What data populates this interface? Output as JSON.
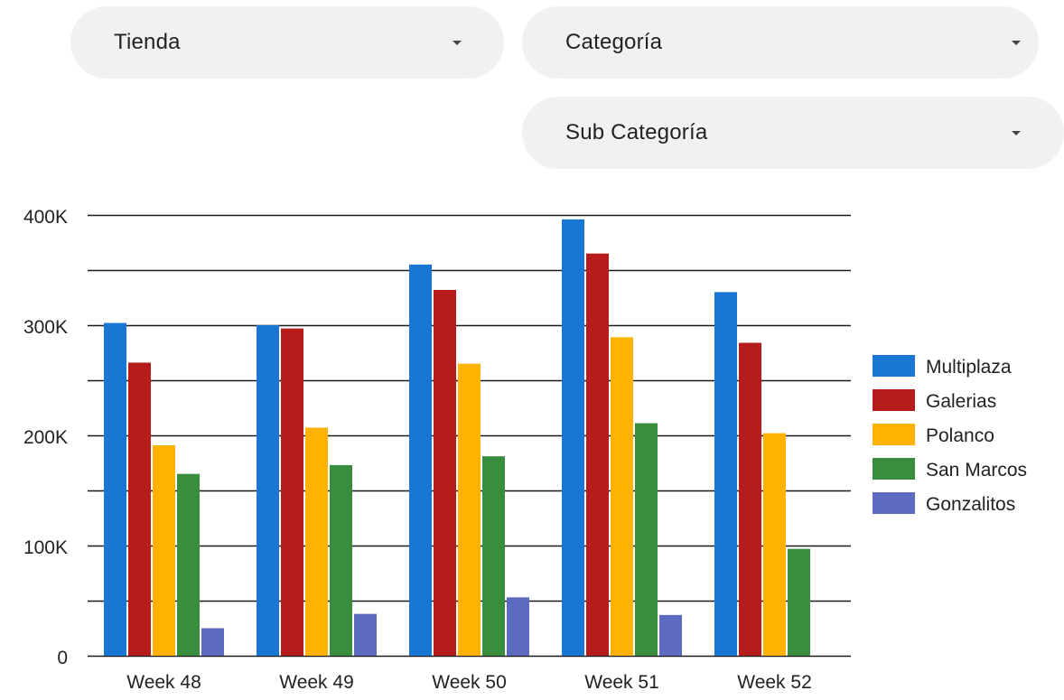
{
  "filters": {
    "tienda": {
      "label": "Tienda"
    },
    "categoria": {
      "label": "Categoría"
    },
    "subcategoria": {
      "label": "Sub Categoría"
    }
  },
  "chart_data": {
    "type": "bar",
    "categories": [
      "Week 48",
      "Week 49",
      "Week 50",
      "Week 51",
      "Week 52"
    ],
    "series": [
      {
        "name": "Multiplaza",
        "color": "#1976d2",
        "values": [
          302000,
          300000,
          355000,
          396000,
          330000
        ]
      },
      {
        "name": "Galerias",
        "color": "#b71c1c",
        "values": [
          266000,
          297000,
          332000,
          365000,
          284000
        ]
      },
      {
        "name": "Polanco",
        "color": "#ffb300",
        "values": [
          191000,
          207000,
          265000,
          289000,
          202000
        ]
      },
      {
        "name": "San Marcos",
        "color": "#388e3c",
        "values": [
          165000,
          173000,
          181000,
          211000,
          97000
        ]
      },
      {
        "name": "Gonzalitos",
        "color": "#5c6bc0",
        "values": [
          25000,
          38000,
          53000,
          37000,
          0
        ]
      }
    ],
    "ylim": [
      0,
      400000
    ],
    "yticks": [
      0,
      100000,
      200000,
      300000,
      400000
    ],
    "ytick_labels": [
      "0",
      "100K",
      "200K",
      "300K",
      "400K"
    ],
    "grid": true,
    "legend": "right"
  }
}
